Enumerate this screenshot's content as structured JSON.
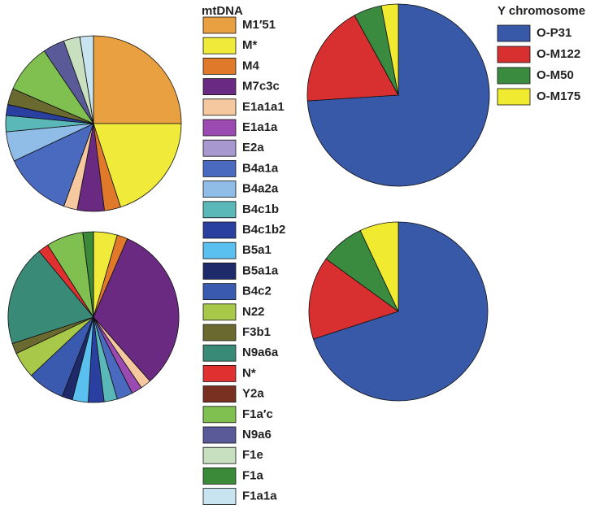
{
  "chart_data": [
    {
      "type": "pie",
      "title": "mtDNA",
      "categories": [
        "M1′51",
        "M*",
        "M4",
        "M7c3c",
        "E1a1a1",
        "E1a1a",
        "E2a",
        "B4a1a",
        "B4a2a",
        "B4c1b",
        "B4c1b2",
        "B5a1",
        "B5a1a",
        "B4c2",
        "N22",
        "F3b1",
        "N9a6a",
        "N*",
        "Y2a",
        "F1a′c",
        "N9a6",
        "F1e",
        "F1a",
        "F1a1a"
      ],
      "colors": [
        "#e8a040",
        "#f0ea3a",
        "#e07a2a",
        "#6a2a82",
        "#f5c8a0",
        "#9a4ab0",
        "#a898d0",
        "#4a6ac0",
        "#90bce8",
        "#5ab8b8",
        "#2a40a0",
        "#5ac0f0",
        "#1e2a6a",
        "#3a5ab0",
        "#a8c84a",
        "#6a6a30",
        "#3a8a78",
        "#e03030",
        "#7a3020",
        "#80c050",
        "#5a5a98",
        "#c8e0c0",
        "#3a8a3a",
        "#c8e4f0"
      ],
      "series": [
        {
          "values": [
            25,
            20,
            3,
            5,
            2.5,
            0,
            0,
            12.5,
            5.5,
            3,
            2,
            0,
            0,
            0,
            0,
            3,
            0,
            0,
            0,
            9,
            4,
            3,
            0,
            2.5
          ]
        },
        {
          "values": [
            0,
            4.5,
            2,
            32,
            2,
            2,
            0,
            3,
            0,
            2.5,
            3,
            3,
            2,
            7,
            5,
            2,
            19,
            2,
            0,
            7,
            0,
            0,
            2,
            0
          ]
        }
      ]
    },
    {
      "type": "pie",
      "title": "Y chromosome",
      "categories": [
        "O-P31",
        "O-M122",
        "O-M50",
        "O-M175"
      ],
      "colors": [
        "#3858a8",
        "#d83030",
        "#3a8a40",
        "#f0ea30"
      ],
      "series": [
        {
          "values": [
            74,
            18,
            5,
            3
          ]
        },
        {
          "values": [
            70,
            15,
            8,
            7
          ]
        }
      ]
    }
  ]
}
